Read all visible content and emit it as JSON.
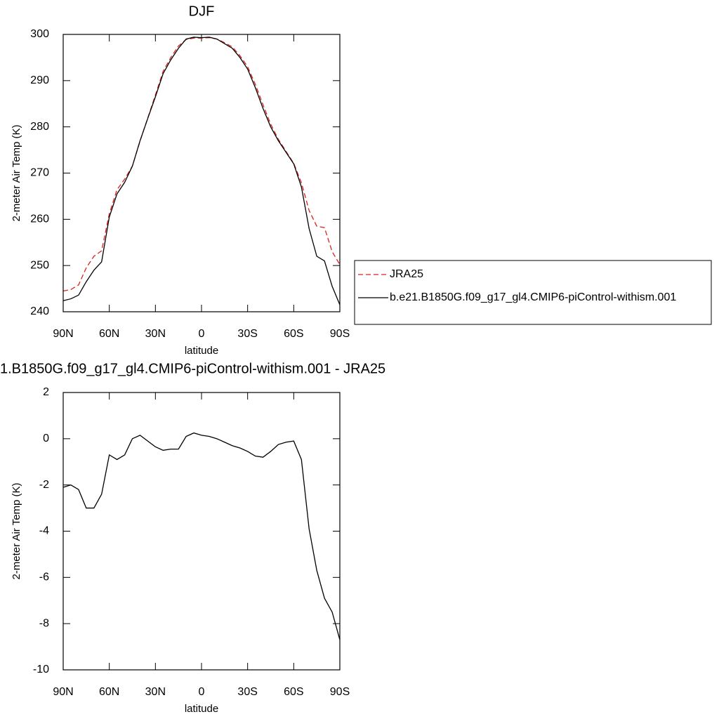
{
  "chart_data": [
    {
      "type": "line",
      "title": "DJF",
      "xlabel": "latitude",
      "ylabel": "2-meter Air Temp (K)",
      "x": [
        90,
        85,
        80,
        75,
        70,
        65,
        60,
        55,
        50,
        45,
        40,
        35,
        30,
        25,
        20,
        15,
        10,
        5,
        0,
        -5,
        -10,
        -15,
        -20,
        -25,
        -30,
        -35,
        -40,
        -45,
        -50,
        -55,
        -60,
        -65,
        -70,
        -75,
        -80,
        -85,
        -90
      ],
      "series": [
        {
          "name": "JRA25",
          "color": "#e0201b",
          "style": "dashed",
          "values": [
            244.5,
            244.8,
            245.8,
            249.5,
            252,
            253.2,
            261.2,
            266.4,
            268.7,
            271.5,
            276.9,
            281.9,
            286.9,
            292,
            295,
            297.5,
            298.9,
            299.2,
            299.2,
            299.3,
            299,
            298.2,
            297.3,
            295.4,
            293,
            289.2,
            284.8,
            280.6,
            277.3,
            274.7,
            272.1,
            267.9,
            261.9,
            258.5,
            258.2,
            253,
            250.2
          ]
        },
        {
          "name": "b.e21.B1850G.f09_g17_gl4.CMIP6-piControl-withism.001",
          "color": "#000000",
          "style": "solid",
          "values": [
            242.4,
            242.8,
            243.6,
            246.5,
            249,
            250.8,
            260.5,
            265.5,
            268,
            271.5,
            277,
            281.8,
            286.5,
            291.5,
            294.5,
            297,
            299,
            299.4,
            299.3,
            299.4,
            299,
            298,
            297,
            295,
            292.5,
            288.5,
            284,
            280,
            277,
            274.5,
            272,
            267,
            258,
            252,
            251,
            245.5,
            241.5
          ]
        }
      ],
      "xlim": [
        90,
        -90
      ],
      "xticks": [
        {
          "value": 90,
          "label": "90N"
        },
        {
          "value": 60,
          "label": "60N"
        },
        {
          "value": 30,
          "label": "30N"
        },
        0,
        {
          "value": -30,
          "label": "30S"
        },
        {
          "value": -60,
          "label": "60S"
        },
        {
          "value": -90,
          "label": "90S"
        }
      ],
      "ylim": [
        240,
        300
      ],
      "yticks": [
        240,
        250,
        260,
        270,
        280,
        290,
        300
      ],
      "legend": "right"
    },
    {
      "type": "line",
      "title": "1.B1850G.f09_g17_gl4.CMIP6-piControl-withism.001 - JRA25",
      "xlabel": "latitude",
      "ylabel": "2-meter Air Temp (K)",
      "x": [
        90,
        85,
        80,
        75,
        70,
        65,
        60,
        55,
        50,
        45,
        40,
        35,
        30,
        25,
        20,
        15,
        10,
        5,
        0,
        -5,
        -10,
        -15,
        -20,
        -25,
        -30,
        -35,
        -40,
        -45,
        -50,
        -55,
        -60,
        -65,
        -70,
        -75,
        -80,
        -85,
        -90
      ],
      "values": [
        -2.1,
        -2.0,
        -2.2,
        -3.0,
        -3.0,
        -2.4,
        -0.7,
        -0.9,
        -0.7,
        0.0,
        0.15,
        -0.1,
        -0.35,
        -0.5,
        -0.45,
        -0.45,
        0.1,
        0.25,
        0.15,
        0.1,
        0.0,
        -0.15,
        -0.3,
        -0.4,
        -0.55,
        -0.75,
        -0.8,
        -0.55,
        -0.25,
        -0.15,
        -0.1,
        -0.9,
        -3.9,
        -5.7,
        -6.9,
        -7.5,
        -8.7
      ],
      "color": "#000000",
      "xlim": [
        90,
        -90
      ],
      "xticks": [
        {
          "value": 90,
          "label": "90N"
        },
        {
          "value": 60,
          "label": "60N"
        },
        {
          "value": 30,
          "label": "30N"
        },
        0,
        {
          "value": -30,
          "label": "30S"
        },
        {
          "value": -60,
          "label": "60S"
        },
        {
          "value": -90,
          "label": "90S"
        }
      ],
      "ylim": [
        -10,
        2
      ],
      "yticks": [
        -10,
        -8,
        -6,
        -4,
        -2,
        0,
        2
      ]
    }
  ]
}
